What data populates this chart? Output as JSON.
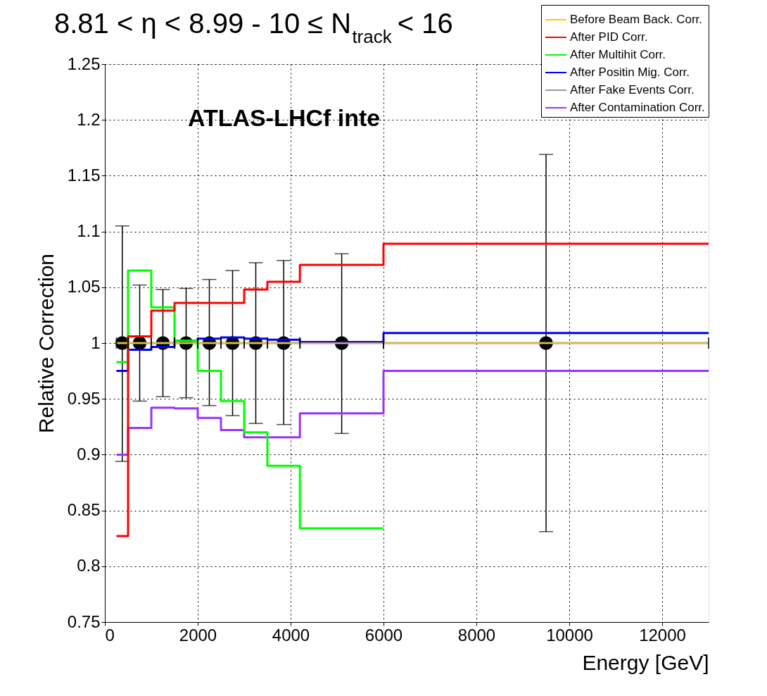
{
  "chart_data": {
    "type": "step",
    "title": "8.81 < η < 8.99 - 10 ≤ N$_{track}$ < 16",
    "xlabel": "Energy [GeV]",
    "ylabel": "Relative Correction",
    "annotations": [
      "ATLAS-LHCf inte"
    ],
    "xlim": [
      0,
      13000
    ],
    "ylim": [
      0.75,
      1.25
    ],
    "xticks": [
      0,
      2000,
      4000,
      6000,
      8000,
      10000,
      12000
    ],
    "yticks": [
      0.75,
      0.8,
      0.85,
      0.9,
      0.95,
      1,
      1.05,
      1.1,
      1.15,
      1.2,
      1.25
    ],
    "grid": true,
    "legend": "top right",
    "series": [
      {
        "name": "Before Beam Back. Corr.",
        "color": "#ffcc00",
        "x": [
          250,
          500,
          1000,
          1500,
          2000,
          2500,
          3000,
          3500,
          4200,
          6000,
          13000
        ],
        "values": [
          1,
          1,
          1,
          1,
          1,
          1,
          1,
          1,
          1,
          1,
          1
        ]
      },
      {
        "name": "After PID Corr.",
        "color": "#ff0000",
        "x": [
          250,
          500,
          1000,
          1500,
          2000,
          2500,
          3000,
          3500,
          4200,
          6000,
          13000
        ],
        "values": [
          0.827,
          1.006,
          1.029,
          1.036,
          1.036,
          1.036,
          1.048,
          1.055,
          1.07,
          1.089,
          1.089
        ]
      },
      {
        "name": "After Multihit Corr.",
        "color": "#00ff00",
        "x": [
          250,
          500,
          1000,
          1500,
          2000,
          2500,
          3000,
          3500,
          4200,
          6000
        ],
        "values": [
          0.983,
          1.065,
          1.032,
          1.002,
          0.975,
          0.948,
          0.92,
          0.89,
          0.834,
          0.834
        ]
      },
      {
        "name": "After Positin Mig. Corr.",
        "color": "#0000ff",
        "x": [
          250,
          500,
          1000,
          1500,
          2000,
          2500,
          3000,
          3500,
          4200,
          6000,
          13000
        ],
        "values": [
          0.975,
          0.994,
          0.9965,
          1.002,
          1.004,
          1.005,
          1.004,
          1.003,
          1.001,
          1.009,
          1.009
        ]
      },
      {
        "name": "After Fake Events Corr.",
        "color": "#999999",
        "x": [
          250,
          500,
          1000,
          1500,
          2000,
          2500,
          3000,
          3500,
          4200,
          6000,
          13000
        ],
        "values": [
          1,
          1,
          1,
          1,
          1,
          1,
          1,
          1,
          1,
          1,
          1
        ]
      },
      {
        "name": "After Contamination Corr.",
        "color": "#9933ff",
        "x": [
          250,
          500,
          1000,
          1500,
          2000,
          2500,
          3000,
          3500,
          4200,
          6000,
          13000
        ],
        "values": [
          0.9,
          0.924,
          0.942,
          0.9415,
          0.933,
          0.922,
          0.9155,
          0.9155,
          0.937,
          0.975,
          0.975
        ]
      },
      {
        "type": "scatter",
        "color": "#000000",
        "marker": "circle",
        "x": [
          375,
          750,
          1250,
          1750,
          2250,
          2750,
          3250,
          3850,
          5100,
          9500
        ],
        "values": [
          1,
          1,
          1,
          1,
          1,
          1,
          1,
          1,
          1,
          1
        ],
        "errors": [
          [
            0.894,
            1.105
          ],
          [
            0.948,
            1.052
          ],
          [
            0.952,
            1.048
          ],
          [
            0.951,
            1.049
          ],
          [
            0.944,
            1.057
          ],
          [
            0.935,
            1.065
          ],
          [
            0.928,
            1.072
          ],
          [
            0.927,
            1.074
          ],
          [
            0.919,
            1.08
          ],
          [
            0.831,
            1.169
          ]
        ],
        "xerrors": [
          [
            250,
            500
          ],
          [
            500,
            1000
          ],
          [
            1000,
            1500
          ],
          [
            1500,
            2000
          ],
          [
            2000,
            2500
          ],
          [
            2500,
            3000
          ],
          [
            3000,
            3500
          ],
          [
            3500,
            4200
          ],
          [
            4200,
            6000
          ],
          [
            6000,
            13000
          ]
        ]
      }
    ]
  }
}
